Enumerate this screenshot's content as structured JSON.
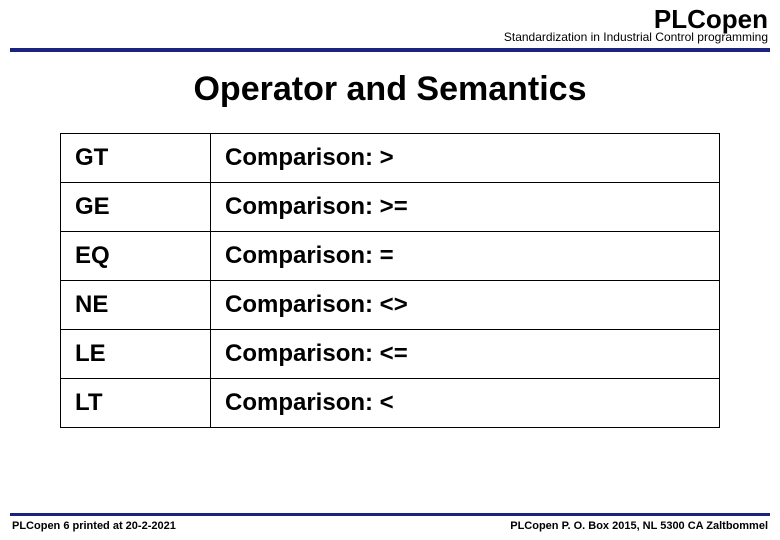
{
  "header": {
    "brand": "PLCopen",
    "tagline": "Standardization in Industrial Control programming"
  },
  "title": "Operator and Semantics",
  "table": {
    "rows": [
      {
        "operator": "GT",
        "semantics": "Comparison: >"
      },
      {
        "operator": "GE",
        "semantics": "Comparison: >="
      },
      {
        "operator": "EQ",
        "semantics": "Comparison: ="
      },
      {
        "operator": "NE",
        "semantics": "Comparison: <>"
      },
      {
        "operator": "LE",
        "semantics": "Comparison: <="
      },
      {
        "operator": "LT",
        "semantics": "Comparison: <"
      }
    ]
  },
  "footer": {
    "left": "PLCopen  6  printed at 20-2-2021",
    "right": "PLCopen P. O. Box 2015, NL 5300 CA  Zaltbommel"
  },
  "colors": {
    "rule": "#1a237e",
    "text": "#000000",
    "background": "#ffffff"
  }
}
